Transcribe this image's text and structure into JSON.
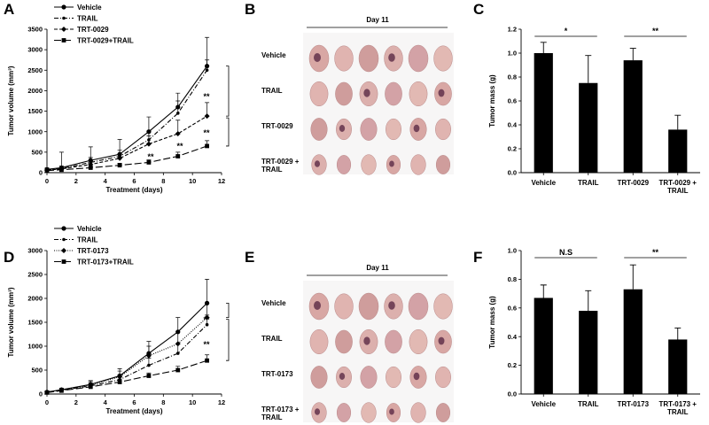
{
  "chart_data": [
    {
      "type": "line",
      "panel": "A",
      "xlabel": "Treatment (days)",
      "ylabel": "Tumor volume (mm³)",
      "x": [
        0,
        1,
        3,
        5,
        7,
        9,
        11
      ],
      "xlim": [
        0,
        12
      ],
      "xticks": [
        0,
        2,
        4,
        6,
        8,
        10,
        12
      ],
      "ylim": [
        0,
        3500
      ],
      "yticks": [
        0,
        500,
        1000,
        1500,
        2000,
        2500,
        3000,
        3500
      ],
      "series": [
        {
          "name": "Vehicle",
          "color": "#000000",
          "dash": "none",
          "marker": "circle",
          "values": [
            80,
            120,
            300,
            450,
            1000,
            1600,
            2600
          ],
          "errors": [
            40,
            380,
            330,
            360,
            360,
            340,
            700
          ]
        },
        {
          "name": "TRAIL",
          "color": "#000000",
          "dash": "5 2 1 2",
          "marker": "dot",
          "values": [
            70,
            100,
            250,
            400,
            800,
            1450,
            2500
          ],
          "errors": [
            30,
            60,
            120,
            150,
            220,
            300,
            250
          ]
        },
        {
          "name": "TRT-0029",
          "color": "#000000",
          "dash": "4 2",
          "marker": "diamond",
          "values": [
            60,
            90,
            200,
            350,
            700,
            950,
            1380
          ],
          "errors": [
            30,
            40,
            80,
            110,
            200,
            330,
            330
          ]
        },
        {
          "name": "TRT-0029+TRAIL",
          "color": "#000000",
          "dash": "8 3",
          "marker": "square",
          "values": [
            50,
            70,
            120,
            180,
            250,
            400,
            650
          ],
          "errors": [
            20,
            30,
            40,
            50,
            60,
            100,
            130
          ]
        }
      ],
      "annotations": [
        "**",
        "**",
        "**",
        "**"
      ]
    },
    {
      "type": "bar",
      "panel": "C",
      "ylabel": "Tumor mass (g)",
      "categories": [
        "Vehicle",
        "TRAIL",
        "TRT-0029",
        "TRT-0029 + TRAIL"
      ],
      "values": [
        1.0,
        0.75,
        0.94,
        0.36
      ],
      "errors": [
        0.09,
        0.23,
        0.1,
        0.12
      ],
      "color": "#000000",
      "ylim": [
        0,
        1.2
      ],
      "yticks": [
        {
          "value": 0,
          "label": "0.0"
        },
        0.2,
        0.4,
        0.6,
        0.8,
        {
          "value": 1,
          "label": "1.0"
        },
        1.2
      ],
      "annotations": [
        "*",
        "**"
      ]
    },
    {
      "type": "line",
      "panel": "D",
      "xlabel": "Treatment (days)",
      "ylabel": "Tumor volume (mm³)",
      "x": [
        0,
        1,
        3,
        5,
        7,
        9,
        11
      ],
      "xlim": [
        0,
        12
      ],
      "xticks": [
        0,
        2,
        4,
        6,
        8,
        10,
        12
      ],
      "ylim": [
        0,
        3000
      ],
      "yticks": [
        0,
        500,
        1000,
        1500,
        2000,
        2500,
        3000
      ],
      "series": [
        {
          "name": "Vehicle",
          "color": "#000000",
          "dash": "none",
          "marker": "circle",
          "values": [
            40,
            90,
            200,
            380,
            850,
            1300,
            1900
          ],
          "errors": [
            20,
            30,
            80,
            150,
            250,
            300,
            500
          ]
        },
        {
          "name": "TRAIL",
          "color": "#000000",
          "dash": "5 2 1 2",
          "marker": "dot",
          "values": [
            40,
            80,
            170,
            300,
            600,
            850,
            1450
          ],
          "errors": [
            20,
            30,
            60,
            100,
            150,
            200,
            200
          ]
        },
        {
          "name": "TRT-0173",
          "color": "#000000",
          "dash": "1 1.5",
          "marker": "diamond",
          "values": [
            40,
            85,
            190,
            360,
            800,
            1050,
            1600
          ],
          "errors": [
            20,
            30,
            70,
            120,
            200,
            250,
            300
          ]
        },
        {
          "name": "TRT-0173+TRAIL",
          "color": "#000000",
          "dash": "8 3",
          "marker": "square",
          "values": [
            30,
            70,
            150,
            250,
            380,
            500,
            700
          ],
          "errors": [
            15,
            20,
            40,
            60,
            60,
            80,
            120
          ]
        }
      ],
      "annotations": [
        "**",
        "**"
      ]
    },
    {
      "type": "bar",
      "panel": "F",
      "ylabel": "Tumor mass (g)",
      "categories": [
        "Vehicle",
        "TRAIL",
        "TRT-0173",
        "TRT-0173 + TRAIL"
      ],
      "values": [
        0.67,
        0.58,
        0.73,
        0.38
      ],
      "errors": [
        0.09,
        0.14,
        0.17,
        0.08
      ],
      "color": "#000000",
      "ylim": [
        0,
        1
      ],
      "yticks": [
        {
          "value": 0,
          "label": "0.0"
        },
        0.2,
        0.4,
        0.6,
        0.8,
        {
          "value": 1,
          "label": "1.0"
        }
      ],
      "annotations": [
        "N.S",
        "**"
      ]
    }
  ],
  "photo_panels": [
    {
      "panel": "B",
      "title": "Day 11",
      "rows": [
        "Vehicle",
        "TRAIL",
        "TRT-0029",
        "TRT-0029 + TRAIL"
      ]
    },
    {
      "panel": "E",
      "title": "Day 11",
      "rows": [
        "Vehicle",
        "TRAIL",
        "TRT-0173",
        "TRT-0173 + TRAIL"
      ]
    }
  ]
}
